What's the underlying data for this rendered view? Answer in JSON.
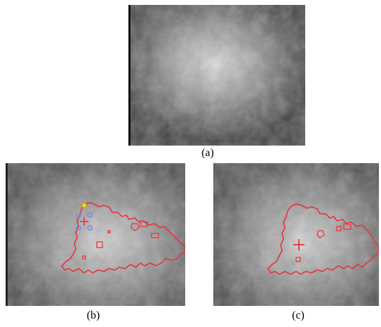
{
  "figure": {
    "panels": [
      {
        "id": "a",
        "caption": "(a)"
      },
      {
        "id": "b",
        "caption": "(b)"
      },
      {
        "id": "c",
        "caption": "(c)"
      }
    ]
  },
  "colors": {
    "contour": "#e8333a",
    "seed_marker": "#e8333a",
    "control_points": "#6f8fe6",
    "start_point": "#f2d21e",
    "background_dark": "#3a3a3a",
    "mass_light": "#d6d6d6"
  },
  "icons": {
    "center_marker": "plus-marker-icon",
    "start_point": "yellow-dot-icon",
    "control_points": "blue-circle-icon"
  }
}
